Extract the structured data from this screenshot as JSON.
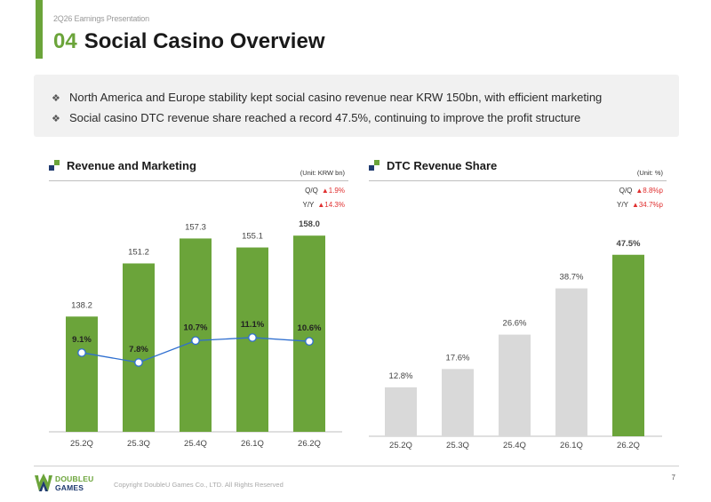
{
  "header": {
    "eyebrow": "2Q26 Earnings Presentation",
    "section_number": "04",
    "title": "Social Casino Overview"
  },
  "summary": {
    "bullet_marker": "❖",
    "bullets": [
      "North America and Europe stability kept social casino revenue near KRW 150bn, with efficient marketing",
      "Social casino DTC revenue share reached a record 47.5%, continuing to improve the profit structure"
    ]
  },
  "left_panel": {
    "title": "Revenue and Marketing",
    "unit": "(Unit: KRW bn)",
    "qoq_label": "Q/Q",
    "qoq_value": "▲1.9%",
    "yoy_label": "Y/Y",
    "yoy_value": "▲14.3%"
  },
  "right_panel": {
    "title": "DTC Revenue Share",
    "unit": "(Unit: %)",
    "qoq_label": "Q/Q",
    "qoq_value": "▲8.8%p",
    "yoy_label": "Y/Y",
    "yoy_value": "▲34.7%p"
  },
  "chart_data": [
    {
      "type": "bar",
      "categories": [
        "25.2Q",
        "25.3Q",
        "25.4Q",
        "26.1Q",
        "26.2Q"
      ],
      "series": [
        {
          "values": [
            138.2,
            151.2,
            157.3,
            155.1,
            158.0
          ],
          "labels": [
            "138.2",
            "151.2",
            "157.3",
            "155.1",
            "158.0"
          ],
          "color": "#6ba43a"
        },
        {
          "type": "line",
          "values": [
            9.1,
            7.8,
            10.7,
            11.1,
            10.6
          ],
          "labels": [
            "9.1%",
            "7.8%",
            "10.7%",
            "11.1%",
            "10.6%"
          ],
          "color": "#2f6fd0"
        }
      ]
    },
    {
      "type": "bar",
      "categories": [
        "25.2Q",
        "25.3Q",
        "25.4Q",
        "26.1Q",
        "26.2Q"
      ],
      "values": [
        12.8,
        17.6,
        26.6,
        38.7,
        47.5
      ],
      "labels": [
        "12.8%",
        "17.6%",
        "26.6%",
        "38.7%",
        "47.5%"
      ],
      "colors": [
        "#d9d9d9",
        "#d9d9d9",
        "#d9d9d9",
        "#d9d9d9",
        "#6ba43a"
      ]
    }
  ],
  "footer": {
    "logo_line1": "DOUBLEU",
    "logo_line2": "GAMES",
    "copyright": "Copyright DoubleU Games Co., LTD. All Rights Reserved",
    "page_number": "7"
  }
}
